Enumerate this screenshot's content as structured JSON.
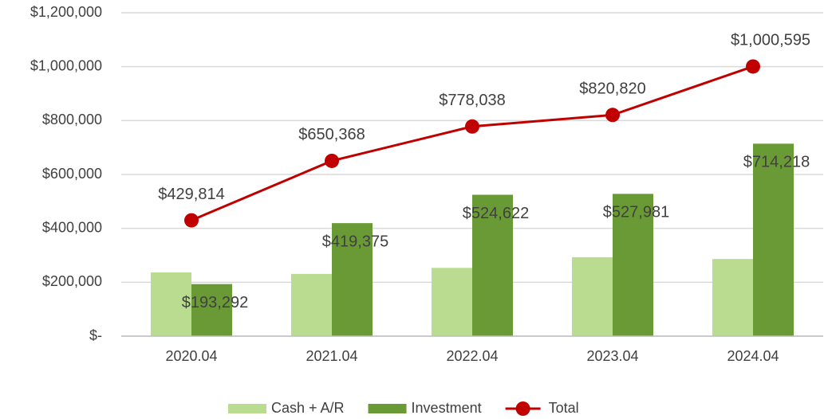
{
  "chart_data": {
    "type": "bar",
    "categories": [
      "2020.04",
      "2021.04",
      "2022.04",
      "2023.04",
      "2024.04"
    ],
    "series": [
      {
        "name": "Cash + A/R",
        "color": "#b9dc91",
        "values": [
          236522,
          230993,
          253416,
          292839,
          286377
        ]
      },
      {
        "name": "Investment",
        "color": "#6a9a35",
        "values": [
          193292,
          419375,
          524622,
          527981,
          714218
        ],
        "value_labels": [
          "$193,292",
          "$419,375",
          "$524,622",
          "$527,981",
          "$714,218"
        ]
      },
      {
        "name": "Total",
        "type": "line",
        "color": "#c00000",
        "values": [
          429814,
          650368,
          778038,
          820820,
          1000595
        ],
        "value_labels": [
          "$429,814",
          "$650,368",
          "$778,038",
          "$820,820",
          "$1,000,595"
        ]
      }
    ],
    "ylim": [
      0,
      1200000
    ],
    "yticks": [
      {
        "value": 0,
        "label": "$-"
      },
      {
        "value": 200000,
        "label": "$200,000"
      },
      {
        "value": 400000,
        "label": "$400,000"
      },
      {
        "value": 600000,
        "label": "$600,000"
      },
      {
        "value": 800000,
        "label": "$800,000"
      },
      {
        "value": 1000000,
        "label": "$1,000,000"
      },
      {
        "value": 1200000,
        "label": "$1,200,000"
      }
    ],
    "grid": true,
    "legend": "bottom"
  }
}
